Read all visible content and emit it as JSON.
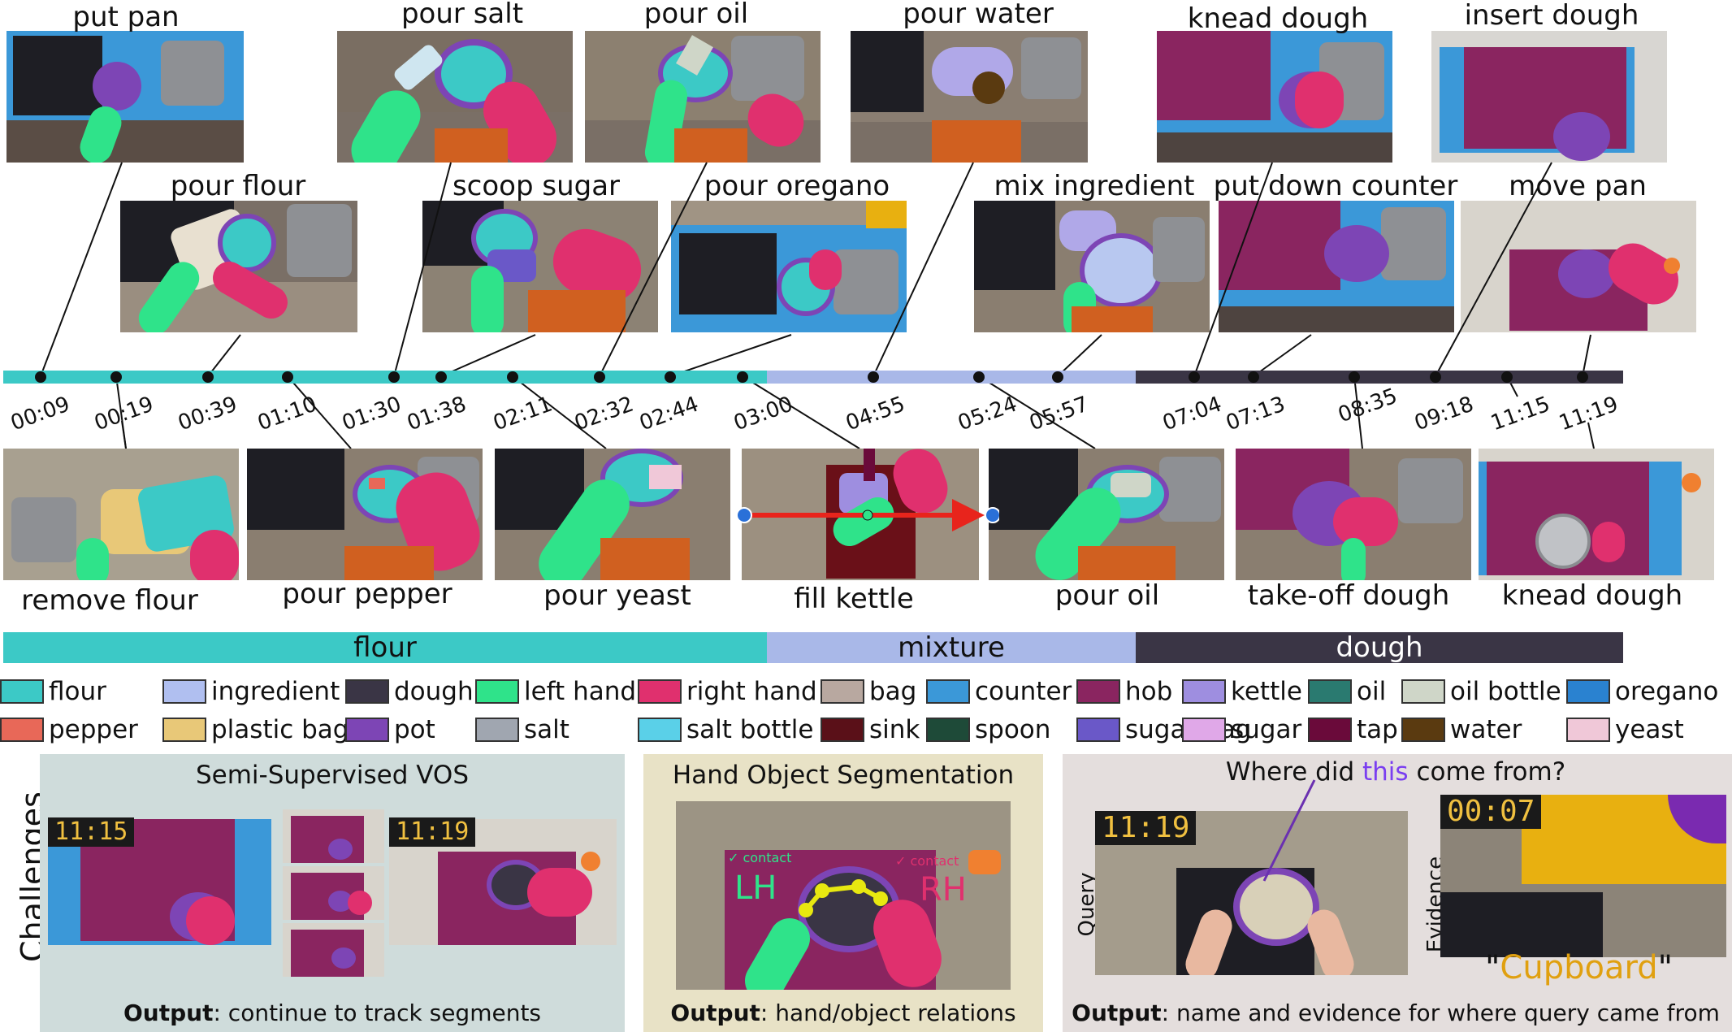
{
  "top_labels": [
    "put pan",
    "pour salt",
    "pour oil",
    "pour water",
    "knead dough",
    "insert dough"
  ],
  "mid_labels": [
    "pour flour",
    "scoop sugar",
    "pour oregano",
    "mix ingredient",
    "put down counter",
    "move pan"
  ],
  "bottom_labels": [
    "remove flour",
    "pour pepper",
    "pour yeast",
    "fill kettle",
    "pour oil",
    "take-off dough",
    "knead dough"
  ],
  "timestamps": [
    "00:09",
    "00:19",
    "00:39",
    "01:10",
    "01:30",
    "01:38",
    "02:11",
    "02:32",
    "02:44",
    "03:00",
    "04:55",
    "05:24",
    "05:57",
    "07:04",
    "07:13",
    "08:35",
    "09:18",
    "11:15",
    "11:19"
  ],
  "phases": [
    {
      "label": "flour",
      "color": "#3cc9c6"
    },
    {
      "label": "mixture",
      "color": "#a9b8e8"
    },
    {
      "label": "dough",
      "color": "#3a3545"
    }
  ],
  "legend": [
    {
      "label": "flour",
      "color": "#3cc9c6"
    },
    {
      "label": "ingredient",
      "color": "#b0bff0"
    },
    {
      "label": "dough",
      "color": "#3a3545"
    },
    {
      "label": "left hand",
      "color": "#2fe38a"
    },
    {
      "label": "right hand",
      "color": "#e0306e"
    },
    {
      "label": "bag",
      "color": "#b8a8a0"
    },
    {
      "label": "counter",
      "color": "#3b98d8"
    },
    {
      "label": "hob",
      "color": "#8a2560"
    },
    {
      "label": "kettle",
      "color": "#9e8ee0"
    },
    {
      "label": "oil",
      "color": "#2a7a70"
    },
    {
      "label": "oil bottle",
      "color": "#cfd6c8"
    },
    {
      "label": "oregano",
      "color": "#2a82d0"
    },
    {
      "label": "pepper",
      "color": "#e86858"
    },
    {
      "label": "plastic bag",
      "color": "#e8c878"
    },
    {
      "label": "pot",
      "color": "#7d45b5"
    },
    {
      "label": "salt",
      "color": "#a0a6b0"
    },
    {
      "label": "salt bottle",
      "color": "#5ad0e8"
    },
    {
      "label": "sink",
      "color": "#5a1018"
    },
    {
      "label": "spoon",
      "color": "#1e4a38"
    },
    {
      "label": "sugar bag",
      "color": "#6a58c8"
    },
    {
      "label": "sugar",
      "color": "#e0a8e8"
    },
    {
      "label": "tap",
      "color": "#6a0a3a"
    },
    {
      "label": "water",
      "color": "#5a3a10"
    },
    {
      "label": "yeast",
      "color": "#f0c8d8"
    }
  ],
  "challenges_label": "Challenges",
  "panels": {
    "vos": {
      "title": "Semi-Supervised VOS",
      "time_a": "11:15",
      "time_b": "11:19",
      "output_bold": "Output",
      "output_text": ": continue to track segments",
      "bg": "#cfdcdb"
    },
    "hos": {
      "title": "Hand Object Segmentation",
      "lh": "LH",
      "rh": "RH",
      "lh_contact": "✓ contact",
      "rh_contact": "✓ contact",
      "output_bold": "Output",
      "output_text": ": hand/object relations",
      "bg": "#e8e2c6"
    },
    "where": {
      "title_pre": "Where did ",
      "title_this": "this",
      "title_post": " come from?",
      "query_label": "Query",
      "evidence_label": "Evidence",
      "query_time": "11:19",
      "evidence_time": "00:07",
      "answer": "Cupboard",
      "output_bold": "Output",
      "output_text": ": name and evidence for where query came from",
      "bg": "#e4dedd"
    }
  }
}
